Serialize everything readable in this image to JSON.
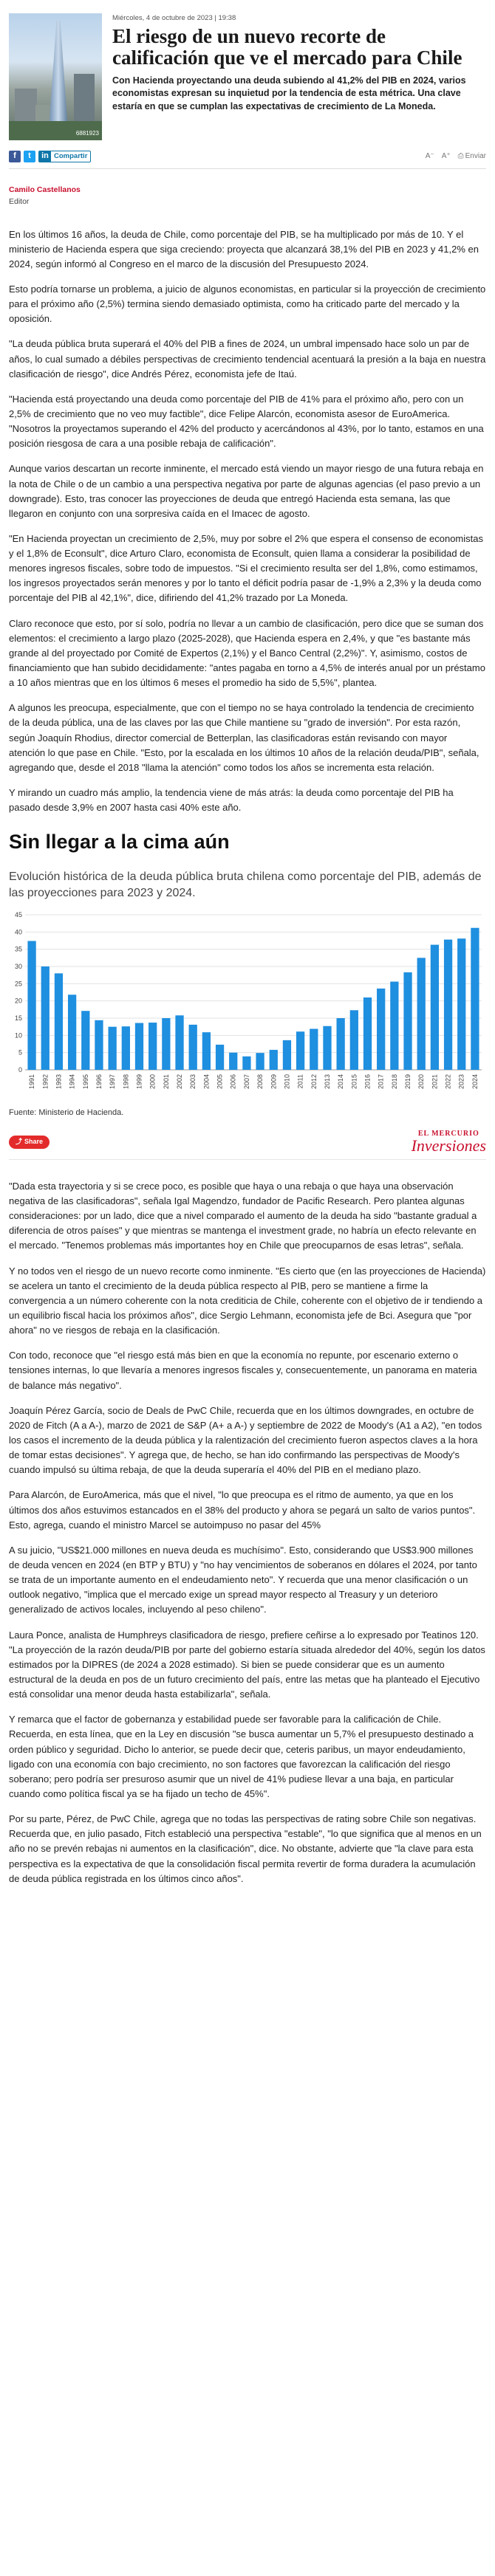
{
  "header": {
    "date": "Miércoles, 4 de octubre de 2023 | 19:38",
    "headline": "El riesgo de un nuevo recorte de calificación que ve el mercado para Chile",
    "lead": "Con Hacienda proyectando una deuda subiendo al 41,2% del PIB en 2024, varios economistas expresan su inquietud por la tendencia de esta métrica. Una clave estaría en que se cumplan las expectativas de crecimiento de La Moneda.",
    "photo_id": "6881923"
  },
  "toolbar": {
    "linkedin_label": "Compartir",
    "font_smaller": "A⁻",
    "font_larger": "A⁺",
    "print_label": "Enviar",
    "icons": [
      "facebook-icon",
      "twitter-icon",
      "linkedin-icon",
      "print-icon"
    ]
  },
  "author": {
    "name": "Camilo Castellanos",
    "role": "Editor"
  },
  "body_before": [
    "En los últimos 16 años, la deuda de Chile, como porcentaje del PIB, se ha multiplicado por más de 10. Y el ministerio de Hacienda espera que siga creciendo: proyecta que alcanzará 38,1% del PIB en 2023 y 41,2% en 2024, según informó al Congreso en el marco de la discusión del Presupuesto 2024.",
    "Esto podría tornarse un problema, a juicio de algunos economistas, en particular si la proyección de crecimiento para el próximo año (2,5%) termina siendo demasiado optimista, como ha criticado parte del mercado y la oposición.",
    "\"La deuda pública bruta superará el 40% del PIB a fines de 2024, un umbral impensado hace solo un par de años, lo cual sumado a débiles perspectivas de crecimiento tendencial acentuará la presión a la baja en nuestra clasificación de riesgo\", dice Andrés Pérez, economista jefe de Itaú.",
    "\"Hacienda está proyectando una deuda como porcentaje del PIB de 41% para el próximo año, pero con un 2,5% de crecimiento que no veo muy factible\", dice Felipe Alarcón, economista asesor de EuroAmerica. \"Nosotros la proyectamos superando el 42% del producto y acercándonos al 43%, por lo tanto, estamos en una posición riesgosa de cara a una posible rebaja de calificación\".",
    "Aunque varios descartan un recorte inminente, el mercado está viendo un mayor riesgo de una futura rebaja en la nota de Chile o de un cambio a una perspectiva negativa por parte de algunas agencias (el paso previo a un downgrade). Esto, tras conocer las proyecciones de deuda que entregó Hacienda esta semana, las que llegaron en conjunto con una sorpresiva caída en el Imacec de agosto.",
    "\"En Hacienda proyectan un crecimiento de 2,5%, muy por sobre el 2% que espera el consenso de economistas y el 1,8% de Econsult\", dice Arturo Claro, economista de Econsult, quien llama a considerar la posibilidad de menores ingresos fiscales, sobre todo de impuestos. \"Si el crecimiento resulta ser del 1,8%, como estimamos, los ingresos proyectados serán menores y por lo tanto el déficit podría pasar de -1,9% a 2,3% y la deuda como porcentaje del PIB al 42,1%\", dice, difiriendo del 41,2% trazado por La Moneda.",
    "Claro reconoce que esto, por sí solo, podría no llevar a un cambio de clasificación, pero dice que se suman dos elementos: el crecimiento a largo plazo (2025-2028), que Hacienda espera en 2,4%, y que \"es bastante más grande al del proyectado por Comité de Expertos (2,1%) y el Banco Central (2,2%)\". Y, asimismo, costos de financiamiento que han subido decididamente: \"antes pagaba en torno a 4,5% de interés anual por un préstamo a 10 años mientras que en los últimos 6 meses el promedio ha sido de 5,5%\", plantea.",
    "A algunos les preocupa, especialmente, que con el tiempo no se haya controlado la tendencia de crecimiento de la deuda pública, una de las claves por las que Chile mantiene su \"grado de inversión\". Por esta razón, según Joaquín Rhodius, director comercial de Betterplan, las clasificadoras están revisando con mayor atención lo que pase en Chile. \"Esto, por la escalada en los últimos 10 años de la relación deuda/PIB\", señala, agregando que, desde el 2018 \"llama la atención\" como todos los años se incrementa esta relación.",
    "Y mirando un cuadro más amplio, la tendencia viene de más atrás: la deuda como porcentaje del PIB ha pasado desde 3,9% en 2007 hasta casi 40% este año."
  ],
  "chart_section": {
    "heading": "Sin llegar a la cima aún",
    "subtitle": "Evolución histórica de la deuda pública bruta chilena como porcentaje del PIB, además de las proyecciones para 2023 y 2024.",
    "source": "Fuente: Ministerio de Hacienda.",
    "share_label": "Share",
    "brand_top": "EL MERCURIO",
    "brand_bottom": "Inversiones"
  },
  "chart_data": {
    "type": "bar",
    "title": "",
    "xlabel": "",
    "ylabel": "",
    "ylim": [
      0,
      45
    ],
    "yticks": [
      0,
      5,
      10,
      15,
      20,
      25,
      30,
      35,
      40,
      45
    ],
    "grid": true,
    "color": "#1f8fe0",
    "categories": [
      "1991",
      "1992",
      "1993",
      "1994",
      "1995",
      "1996",
      "1997",
      "1998",
      "1999",
      "2000",
      "2001",
      "2002",
      "2003",
      "2004",
      "2005",
      "2006",
      "2007",
      "2008",
      "2009",
      "2010",
      "2011",
      "2012",
      "2013",
      "2014",
      "2015",
      "2016",
      "2017",
      "2018",
      "2019",
      "2020",
      "2021",
      "2022",
      "2023",
      "2024"
    ],
    "values": [
      37.4,
      30.0,
      28.0,
      21.8,
      17.1,
      14.4,
      12.5,
      12.6,
      13.6,
      13.7,
      15.0,
      15.8,
      13.1,
      10.9,
      7.3,
      5.0,
      3.9,
      4.9,
      5.8,
      8.6,
      11.1,
      11.9,
      12.7,
      15.0,
      17.3,
      21.0,
      23.6,
      25.6,
      28.3,
      32.5,
      36.3,
      37.8,
      38.1,
      41.2
    ]
  },
  "body_after": [
    "\"Dada esta trayectoria y si se crece poco, es posible que haya o una rebaja o que haya una observación negativa de las clasificadoras\", señala Igal Magendzo, fundador de Pacific Research. Pero plantea algunas consideraciones: por un lado, dice que a nivel comparado el aumento de la deuda ha sido \"bastante gradual a diferencia de otros países\" y que mientras se mantenga el investment grade, no habría un efecto relevante en el mercado. \"Tenemos problemas más importantes hoy en Chile que preocuparnos de esas letras\", señala.",
    "Y no todos ven el riesgo de un nuevo recorte como inminente. \"Es cierto que (en las proyecciones de Hacienda) se acelera un tanto el crecimiento de la deuda pública respecto al PIB, pero se mantiene a firme la convergencia a un número coherente con la nota crediticia de Chile, coherente con el objetivo de ir tendiendo a un equilibrio fiscal hacia los próximos años\", dice Sergio Lehmann, economista jefe de Bci. Asegura que \"por ahora\" no ve riesgos de rebaja en la clasificación.",
    "Con todo, reconoce que \"el riesgo está más bien en que la economía no repunte, por escenario externo o tensiones internas, lo que llevaría a menores ingresos fiscales y, consecuentemente, un panorama en materia de balance más negativo\".",
    "Joaquín Pérez García, socio de Deals de PwC Chile, recuerda que en los últimos downgrades, en octubre de 2020 de Fitch (A a A-), marzo de 2021 de S&P (A+ a A-) y septiembre de 2022 de Moody's (A1 a A2), \"en todos los casos el incremento de la deuda pública y la ralentización del crecimiento fueron aspectos claves a la hora de tomar estas decisiones\". Y agrega que, de hecho, se han ido confirmando las perspectivas de Moody's cuando impulsó su última rebaja, de que la deuda superaría el 40% del PIB en el mediano plazo.",
    "Para Alarcón, de EuroAmerica, más que el nivel, \"lo que preocupa es el ritmo de aumento, ya que en los últimos dos años estuvimos estancados en el 38% del producto y ahora se pegará un salto de varios puntos\". Esto, agrega, cuando el ministro Marcel se autoimpuso no pasar del 45%",
    "A su juicio, \"US$21.000 millones en nueva deuda es muchísimo\". Esto, considerando que US$3.900 millones de deuda vencen en 2024 (en BTP y BTU) y \"no hay vencimientos de soberanos en dólares el 2024, por tanto se trata de un importante aumento en el endeudamiento neto\". Y recuerda que una menor clasificación o un outlook negativo, \"implica que el mercado exige un spread mayor respecto al Treasury y un deterioro generalizado de activos locales, incluyendo al peso chileno\".",
    "Laura Ponce, analista de Humphreys clasificadora de riesgo, prefiere ceñirse a lo expresado por Teatinos 120. \"La proyección de la razón deuda/PIB por parte del gobierno estaría situada alrededor del 40%, según los datos estimados por la DIPRES (de 2024 a 2028 estimado). Si bien se puede considerar que es un aumento estructural de la deuda en pos de un futuro crecimiento del país, entre las metas que ha planteado el Ejecutivo está consolidar una menor deuda hasta estabilizarla\", señala.",
    "Y remarca que el factor de gobernanza y estabilidad puede ser favorable para la calificación de Chile. Recuerda, en esta línea, que en la Ley en discusión \"se busca aumentar un 5,7% el presupuesto destinado a orden público y seguridad. Dicho lo anterior, se puede decir que, ceteris paribus, un mayor endeudamiento, ligado con una economía con bajo crecimiento, no son factores que favorezcan la calificación del riesgo soberano; pero podría ser presuroso asumir que un nivel de 41% pudiese llevar a una baja, en particular cuando como política fiscal ya se ha fijado un techo de 45%\".",
    "Por su parte, Pérez, de PwC Chile, agrega que no todas las perspectivas de rating sobre Chile son negativas. Recuerda que, en julio pasado, Fitch estableció una perspectiva \"estable\", \"lo que significa que al menos en un año no se prevén rebajas ni aumentos en la clasificación\", dice. No obstante, advierte que \"la clave para esta perspectiva es la expectativa de que la consolidación fiscal permita revertir de forma duradera la acumulación de deuda pública registrada en los últimos cinco años\"."
  ]
}
